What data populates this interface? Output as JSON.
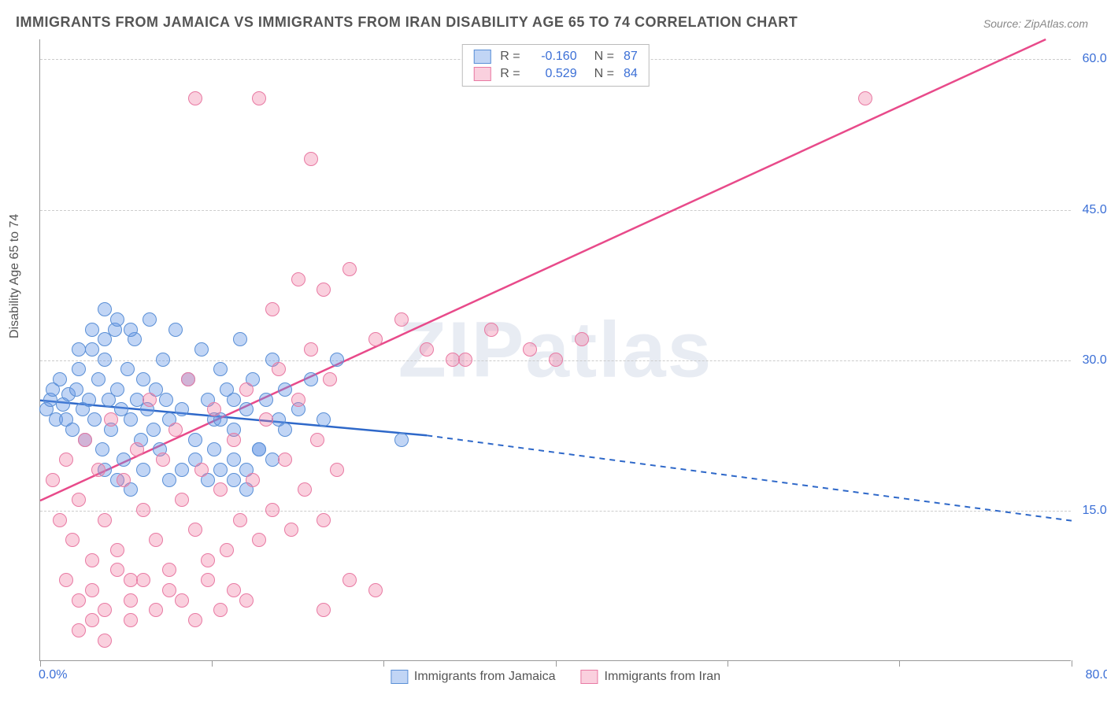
{
  "title": "IMMIGRANTS FROM JAMAICA VS IMMIGRANTS FROM IRAN DISABILITY AGE 65 TO 74 CORRELATION CHART",
  "source": "Source: ZipAtlas.com",
  "ylabel": "Disability Age 65 to 74",
  "watermark": "ZIPatlas",
  "chart": {
    "type": "scatter",
    "background_color": "#ffffff",
    "grid_color": "#cccccc",
    "xlim": [
      0,
      80
    ],
    "ylim": [
      0,
      62
    ],
    "xtick_positions": [
      0,
      13.3,
      26.6,
      40,
      53.3,
      66.6,
      80
    ],
    "xtick_labels": {
      "first": "0.0%",
      "last": "80.0%"
    },
    "ytick_positions": [
      15,
      30,
      45,
      60
    ],
    "ytick_labels": [
      "15.0%",
      "30.0%",
      "45.0%",
      "60.0%"
    ],
    "point_radius": 9,
    "point_opacity": 0.55,
    "line_width": 2.5
  },
  "series": [
    {
      "name": "Immigrants from Jamaica",
      "color_fill": "rgba(100,150,230,0.4)",
      "color_stroke": "#5a8fd6",
      "line_color": "#2e68c9",
      "r_label": "R =",
      "r_value": "-0.160",
      "n_label": "N =",
      "n_value": "87",
      "trend": {
        "x1": 0,
        "y1": 26,
        "x2_solid": 30,
        "y2_solid": 22.5,
        "x2_dash": 80,
        "y2_dash": 14
      },
      "points": [
        [
          0.5,
          25
        ],
        [
          0.8,
          26
        ],
        [
          1,
          27
        ],
        [
          1.2,
          24
        ],
        [
          1.5,
          28
        ],
        [
          1.8,
          25.5
        ],
        [
          2,
          24
        ],
        [
          2.2,
          26.5
        ],
        [
          2.5,
          23
        ],
        [
          2.8,
          27
        ],
        [
          3,
          29
        ],
        [
          3.3,
          25
        ],
        [
          3.5,
          22
        ],
        [
          3.8,
          26
        ],
        [
          4,
          31
        ],
        [
          4.2,
          24
        ],
        [
          4.5,
          28
        ],
        [
          4.8,
          21
        ],
        [
          5,
          30
        ],
        [
          5.3,
          26
        ],
        [
          5.5,
          23
        ],
        [
          5.8,
          33
        ],
        [
          6,
          27
        ],
        [
          6.3,
          25
        ],
        [
          6.5,
          20
        ],
        [
          6.8,
          29
        ],
        [
          7,
          24
        ],
        [
          7.3,
          32
        ],
        [
          7.5,
          26
        ],
        [
          7.8,
          22
        ],
        [
          8,
          28
        ],
        [
          8.3,
          25
        ],
        [
          8.5,
          34
        ],
        [
          8.8,
          23
        ],
        [
          9,
          27
        ],
        [
          9.3,
          21
        ],
        [
          9.5,
          30
        ],
        [
          9.8,
          26
        ],
        [
          10,
          24
        ],
        [
          10.5,
          33
        ],
        [
          11,
          25
        ],
        [
          11.5,
          28
        ],
        [
          12,
          22
        ],
        [
          12.5,
          31
        ],
        [
          13,
          26
        ],
        [
          13.5,
          24
        ],
        [
          14,
          29
        ],
        [
          14.5,
          27
        ],
        [
          15,
          23
        ],
        [
          15.5,
          32
        ],
        [
          16,
          25
        ],
        [
          16.5,
          28
        ],
        [
          17,
          21
        ],
        [
          17.5,
          26
        ],
        [
          18,
          30
        ],
        [
          18.5,
          24
        ],
        [
          19,
          27
        ],
        [
          12,
          20
        ],
        [
          13.5,
          21
        ],
        [
          15,
          20
        ],
        [
          16,
          19
        ],
        [
          17,
          21
        ],
        [
          18,
          20
        ],
        [
          14,
          24
        ],
        [
          15,
          26
        ],
        [
          19,
          23
        ],
        [
          20,
          25
        ],
        [
          21,
          28
        ],
        [
          22,
          24
        ],
        [
          23,
          30
        ],
        [
          13,
          18
        ],
        [
          14,
          19
        ],
        [
          15,
          18
        ],
        [
          16,
          17
        ],
        [
          5,
          19
        ],
        [
          6,
          18
        ],
        [
          7,
          17
        ],
        [
          8,
          19
        ],
        [
          10,
          18
        ],
        [
          11,
          19
        ],
        [
          3,
          31
        ],
        [
          4,
          33
        ],
        [
          5,
          32
        ],
        [
          6,
          34
        ],
        [
          7,
          33
        ],
        [
          5,
          35
        ],
        [
          28,
          22
        ]
      ]
    },
    {
      "name": "Immigrants from Iran",
      "color_fill": "rgba(240,120,160,0.35)",
      "color_stroke": "#e87aa3",
      "line_color": "#e84a8a",
      "r_label": "R =",
      "r_value": "0.529",
      "n_label": "N =",
      "n_value": "84",
      "trend": {
        "x1": 0,
        "y1": 16,
        "x2_solid": 78,
        "y2_solid": 62,
        "x2_dash": 78,
        "y2_dash": 62
      },
      "points": [
        [
          1,
          18
        ],
        [
          1.5,
          14
        ],
        [
          2,
          20
        ],
        [
          2.5,
          12
        ],
        [
          3,
          16
        ],
        [
          3.5,
          22
        ],
        [
          4,
          10
        ],
        [
          4.5,
          19
        ],
        [
          5,
          14
        ],
        [
          5.5,
          24
        ],
        [
          6,
          11
        ],
        [
          6.5,
          18
        ],
        [
          7,
          8
        ],
        [
          7.5,
          21
        ],
        [
          8,
          15
        ],
        [
          8.5,
          26
        ],
        [
          9,
          12
        ],
        [
          9.5,
          20
        ],
        [
          10,
          9
        ],
        [
          10.5,
          23
        ],
        [
          11,
          16
        ],
        [
          11.5,
          28
        ],
        [
          12,
          13
        ],
        [
          12.5,
          19
        ],
        [
          13,
          10
        ],
        [
          13.5,
          25
        ],
        [
          14,
          17
        ],
        [
          14.5,
          11
        ],
        [
          15,
          22
        ],
        [
          15.5,
          14
        ],
        [
          16,
          27
        ],
        [
          16.5,
          18
        ],
        [
          17,
          12
        ],
        [
          17.5,
          24
        ],
        [
          18,
          15
        ],
        [
          18.5,
          29
        ],
        [
          19,
          20
        ],
        [
          19.5,
          13
        ],
        [
          20,
          26
        ],
        [
          20.5,
          17
        ],
        [
          21,
          31
        ],
        [
          21.5,
          22
        ],
        [
          22,
          14
        ],
        [
          22.5,
          28
        ],
        [
          23,
          19
        ],
        [
          2,
          8
        ],
        [
          3,
          6
        ],
        [
          4,
          7
        ],
        [
          5,
          5
        ],
        [
          6,
          9
        ],
        [
          7,
          6
        ],
        [
          8,
          8
        ],
        [
          9,
          5
        ],
        [
          10,
          7
        ],
        [
          11,
          6
        ],
        [
          12,
          4
        ],
        [
          13,
          8
        ],
        [
          14,
          5
        ],
        [
          15,
          7
        ],
        [
          16,
          6
        ],
        [
          3,
          3
        ],
        [
          5,
          2
        ],
        [
          7,
          4
        ],
        [
          4,
          4
        ],
        [
          18,
          35
        ],
        [
          20,
          38
        ],
        [
          21,
          50
        ],
        [
          22,
          37
        ],
        [
          24,
          39
        ],
        [
          17,
          56
        ],
        [
          26,
          32
        ],
        [
          28,
          34
        ],
        [
          30,
          31
        ],
        [
          32,
          30
        ],
        [
          35,
          33
        ],
        [
          38,
          31
        ],
        [
          40,
          30
        ],
        [
          42,
          32
        ],
        [
          12,
          56
        ],
        [
          24,
          8
        ],
        [
          26,
          7
        ],
        [
          64,
          56
        ],
        [
          22,
          5
        ],
        [
          33,
          30
        ]
      ]
    }
  ]
}
